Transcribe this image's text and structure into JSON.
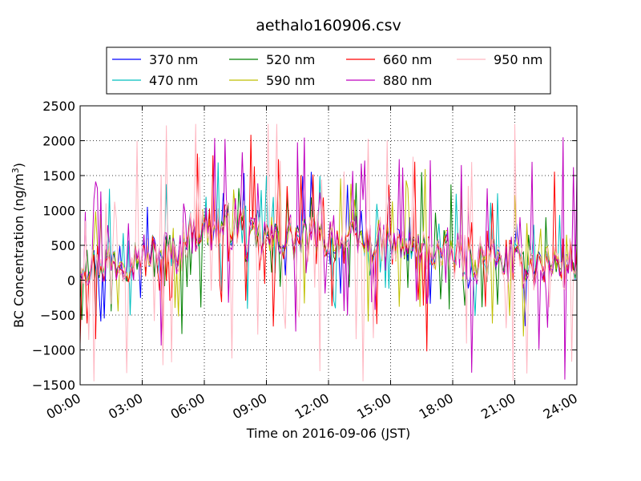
{
  "chart_data": {
    "type": "line",
    "title": "aethalo160906.csv",
    "xlabel": "Time on 2016-09-06 (JST)",
    "ylabel_main": "BC Concentration (ng/m",
    "ylabel_sup": "3",
    "ylabel_tail": ")",
    "xlim_hours": [
      0,
      24
    ],
    "ylim": [
      -1500,
      2500
    ],
    "x_ticks": [
      {
        "hour": 0,
        "label": "00:00"
      },
      {
        "hour": 3,
        "label": "03:00"
      },
      {
        "hour": 6,
        "label": "06:00"
      },
      {
        "hour": 9,
        "label": "09:00"
      },
      {
        "hour": 12,
        "label": "12:00"
      },
      {
        "hour": 15,
        "label": "15:00"
      },
      {
        "hour": 18,
        "label": "18:00"
      },
      {
        "hour": 21,
        "label": "21:00"
      },
      {
        "hour": 24,
        "label": "24:00"
      }
    ],
    "y_ticks": [
      {
        "value": 2500,
        "label": "2500"
      },
      {
        "value": 2000,
        "label": "2000"
      },
      {
        "value": 1500,
        "label": "1500"
      },
      {
        "value": 1000,
        "label": "1000"
      },
      {
        "value": 500,
        "label": "500"
      },
      {
        "value": 0,
        "label": "0"
      },
      {
        "value": -500,
        "label": "−500"
      },
      {
        "value": -1000,
        "label": "−1000"
      },
      {
        "value": -1500,
        "label": "−1500"
      }
    ],
    "grid": true,
    "grid_style": "dotted",
    "legend_position": "top",
    "legend_columns": 4,
    "series_note": "Dense noisy time series at 5-minute resolution; mostly 0-1000 ng/m3 with spikes from about -1450 to 2240.",
    "series": [
      {
        "name": "370 nm",
        "color": "#0000ff",
        "amp": 0.45,
        "seed": 11
      },
      {
        "name": "470 nm",
        "color": "#00bfbf",
        "amp": 0.5,
        "seed": 23
      },
      {
        "name": "520 nm",
        "color": "#008000",
        "amp": 0.55,
        "seed": 37
      },
      {
        "name": "590 nm",
        "color": "#bfbf00",
        "amp": 0.62,
        "seed": 41
      },
      {
        "name": "660 nm",
        "color": "#ff0000",
        "amp": 0.7,
        "seed": 53
      },
      {
        "name": "880 nm",
        "color": "#bf00bf",
        "amp": 0.8,
        "seed": 67
      },
      {
        "name": "950 nm",
        "color": "#ffb6c1",
        "amp": 1.0,
        "seed": 79
      }
    ]
  }
}
